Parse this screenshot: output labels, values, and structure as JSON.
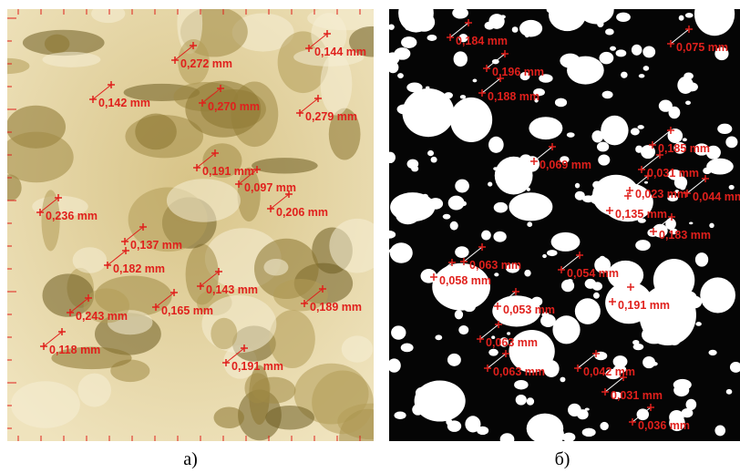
{
  "panels": [
    {
      "caption": "а)",
      "measurements": [
        "0,272 mm",
        "0,144 mm",
        "0,142 mm",
        "0,270 mm",
        "0,279 mm",
        "0,191 mm",
        "0,097 mm",
        "0,236 mm",
        "0,206 mm",
        "0,137 mm",
        "0,182 mm",
        "0,143 mm",
        "0,243 mm",
        "0,165 mm",
        "0,189 mm",
        "0,118 mm",
        "0,191 mm"
      ]
    },
    {
      "caption": "б)",
      "measurements": [
        "0,184 mm",
        "0,075 mm",
        "0,196 mm",
        "0,188 mm",
        "0,185 mm",
        "0,069 mm",
        "0,031 mm",
        "0,023 mm",
        "0,044 mm",
        "0,135 mm",
        "0,183 mm",
        "0,063 mm",
        "0,058 mm",
        "0,054 mm",
        "0,053 mm",
        "0,191 mm",
        "0,063 mm",
        "0,063 mm",
        "0,042 mm",
        "0,031 mm",
        "0,036 mm"
      ]
    }
  ]
}
